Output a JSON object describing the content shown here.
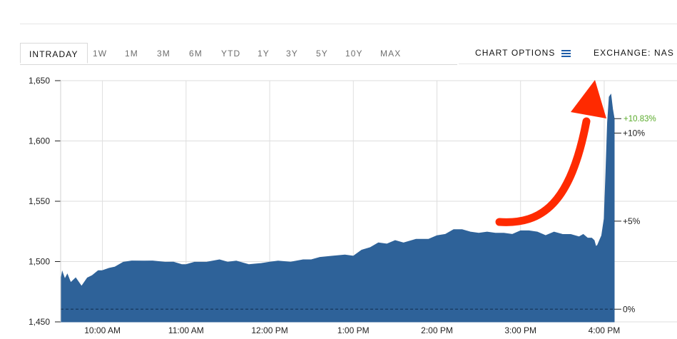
{
  "tabs": [
    {
      "label": "INTRADAY",
      "active": true
    },
    {
      "label": "1W",
      "active": false
    },
    {
      "label": "1M",
      "active": false
    },
    {
      "label": "3M",
      "active": false
    },
    {
      "label": "6M",
      "active": false
    },
    {
      "label": "YTD",
      "active": false
    },
    {
      "label": "1Y",
      "active": false
    },
    {
      "label": "3Y",
      "active": false
    },
    {
      "label": "5Y",
      "active": false
    },
    {
      "label": "10Y",
      "active": false
    },
    {
      "label": "MAX",
      "active": false
    }
  ],
  "chart_options": {
    "label": "CHART OPTIONS",
    "icon": "menu-icon"
  },
  "exchange": {
    "label": "EXCHANGE: NAS"
  },
  "colors": {
    "area_fill": "#2e6299",
    "grid": "#dedede",
    "positive_label": "#5aab2b",
    "baseline_dash": "#1a3d66",
    "annotation_arrow": "#ff2a00"
  },
  "chart_data": {
    "type": "area",
    "title": "",
    "xlabel": "",
    "ylabel": "",
    "ylim": [
      1450,
      1650
    ],
    "y_ticks": [
      1450,
      1500,
      1550,
      1600,
      1650
    ],
    "y_tick_labels": [
      "1,450",
      "1,500",
      "1,550",
      "1,600",
      "1,650"
    ],
    "x_tick_labels": [
      "10:00 AM",
      "11:00 AM",
      "12:00 PM",
      "1:00 PM",
      "2:00 PM",
      "3:00 PM",
      "4:00 PM"
    ],
    "x_tick_hours": [
      10,
      11,
      12,
      13,
      14,
      15,
      16
    ],
    "x_range_hours": [
      9.5,
      16.12
    ],
    "baseline_value": 1460.5,
    "percent_ticks": [
      {
        "label": "+10%",
        "value": 1606.5
      },
      {
        "label": "+5%",
        "value": 1533.5
      },
      {
        "label": "0%",
        "value": 1460.5
      }
    ],
    "last_change_label": "+10.83%",
    "last_change_value": 1618.5,
    "grid": true,
    "series": [
      {
        "name": "",
        "x": [
          9.5,
          9.52,
          9.55,
          9.58,
          9.62,
          9.68,
          9.75,
          9.82,
          9.88,
          9.95,
          10.0,
          10.08,
          10.15,
          10.25,
          10.35,
          10.5,
          10.6,
          10.75,
          10.85,
          10.95,
          11.0,
          11.1,
          11.25,
          11.4,
          11.5,
          11.6,
          11.75,
          11.9,
          12.0,
          12.1,
          12.25,
          12.4,
          12.5,
          12.6,
          12.75,
          12.9,
          13.0,
          13.1,
          13.2,
          13.3,
          13.4,
          13.5,
          13.6,
          13.75,
          13.9,
          14.0,
          14.1,
          14.2,
          14.3,
          14.4,
          14.5,
          14.6,
          14.7,
          14.8,
          14.9,
          15.0,
          15.1,
          15.2,
          15.3,
          15.4,
          15.5,
          15.6,
          15.7,
          15.75,
          15.8,
          15.85,
          15.88,
          15.9,
          15.92,
          15.95,
          15.97,
          16.0,
          16.02,
          16.04,
          16.06,
          16.08,
          16.1,
          16.12
        ],
        "values": [
          1484,
          1491,
          1486,
          1489,
          1483,
          1486,
          1480,
          1486,
          1489,
          1492,
          1493,
          1494,
          1496,
          1499,
          1501,
          1500,
          1501,
          1499,
          1500,
          1497,
          1498,
          1499,
          1500,
          1501,
          1500,
          1500,
          1498,
          1498,
          1500,
          1500,
          1500,
          1501,
          1502,
          1503,
          1505,
          1505,
          1505,
          1509,
          1512,
          1515,
          1515,
          1517,
          1516,
          1518,
          1519,
          1521,
          1523,
          1526,
          1527,
          1524,
          1524,
          1524,
          1524,
          1523,
          1523,
          1525,
          1526,
          1524,
          1522,
          1524,
          1523,
          1522,
          1521,
          1522,
          1520,
          1519,
          1518,
          1512,
          1514,
          1518,
          1522,
          1535,
          1575,
          1615,
          1637,
          1638,
          1627,
          1618
        ]
      }
    ]
  }
}
